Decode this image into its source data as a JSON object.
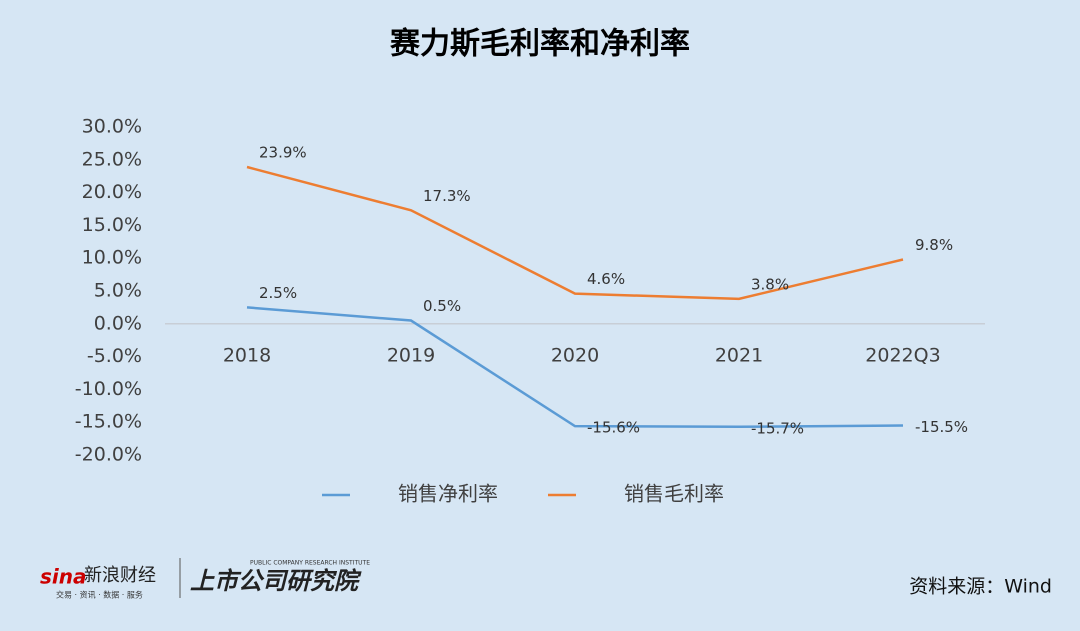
{
  "chart_data": {
    "type": "line",
    "title": "赛力斯毛利率和净利率",
    "categories": [
      "2018",
      "2019",
      "2020",
      "2021",
      "2022Q3"
    ],
    "series": [
      {
        "name": "销售净利率",
        "color": "#5b9bd5",
        "values": [
          2.5,
          0.5,
          -15.6,
          -15.7,
          -15.5
        ],
        "value_labels": [
          "2.5%",
          "0.5%",
          "-15.6%",
          "-15.7%",
          "-15.5%"
        ]
      },
      {
        "name": "销售毛利率",
        "color": "#ed7d31",
        "values": [
          23.9,
          17.3,
          4.6,
          3.8,
          9.8
        ],
        "value_labels": [
          "23.9%",
          "17.3%",
          "4.6%",
          "3.8%",
          "9.8%"
        ]
      }
    ],
    "ylim": [
      -20,
      30
    ],
    "yticks": [
      {
        "value": -20,
        "label": "-20.0%"
      },
      {
        "value": -15,
        "label": "-15.0%"
      },
      {
        "value": -10,
        "label": "-10.0%"
      },
      {
        "value": -5,
        "label": "-5.0%"
      },
      {
        "value": 0,
        "label": "0.0%"
      },
      {
        "value": 5,
        "label": "5.0%"
      },
      {
        "value": 10,
        "label": "10.0%"
      },
      {
        "value": 15,
        "label": "15.0%"
      },
      {
        "value": 20,
        "label": "20.0%"
      },
      {
        "value": 25,
        "label": "25.0%"
      },
      {
        "value": 30,
        "label": "30.0%"
      }
    ],
    "grid": false,
    "legend": "bottom"
  },
  "footer": {
    "logo_sina": "sina",
    "logo_name": "新浪财经",
    "logo_slogan": "交易 · 资讯 · 数据 · 服务",
    "institute": "上市公司研究院",
    "institute_en": "PUBLIC COMPANY RESEARCH INSTITUTE",
    "source": "资料来源：Wind"
  }
}
